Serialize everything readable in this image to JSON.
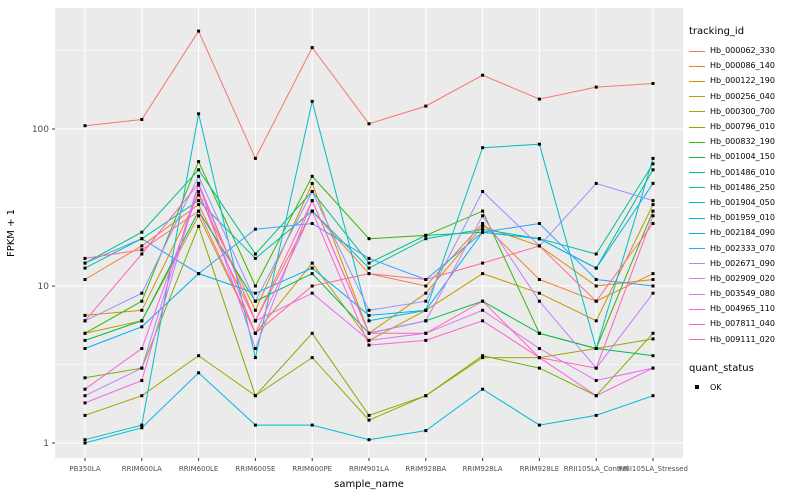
{
  "legend": {
    "tracking_id_title": "tracking_id",
    "quant_status_title": "quant_status",
    "quant_status_items": [
      {
        "label": "OK"
      }
    ]
  },
  "chart_data": {
    "type": "line",
    "title": "",
    "xlabel": "sample_name",
    "ylabel": "FPKM + 1",
    "y_scale": "log10",
    "ylim": [
      0.8,
      590
    ],
    "y_ticks": [
      1,
      10,
      100
    ],
    "panel_bg": "#EBEBEB",
    "grid_color": "#FFFFFF",
    "point_shape": "filled-square",
    "point_color": "#000000",
    "legend_position": "right",
    "categories": [
      "PB350LA",
      "RRIM600LA",
      "RRIM600LE",
      "RRIM600SE",
      "RRIM600PE",
      "RRIM901LA",
      "RRIM928BA",
      "RRIM928LA",
      "RRIM928LE",
      "RRII105LA_Control",
      "RRII105LA_Stressed"
    ],
    "series": [
      {
        "name": "Hb_000062_330",
        "color": "#F8766D",
        "values": [
          105,
          115,
          420,
          65,
          330,
          108,
          140,
          220,
          155,
          185,
          195
        ]
      },
      {
        "name": "Hb_000086_140",
        "color": "#EA8331",
        "values": [
          11,
          18,
          33,
          6,
          30,
          12,
          10,
          25,
          11,
          8,
          12
        ]
      },
      {
        "name": "Hb_000122_190",
        "color": "#D89000",
        "values": [
          6.5,
          7,
          38,
          7,
          45,
          5,
          9,
          24,
          18,
          10,
          11
        ]
      },
      {
        "name": "Hb_000256_040",
        "color": "#C09B00",
        "values": [
          5,
          6,
          28,
          5,
          14,
          4.5,
          7,
          12,
          9,
          6,
          33
        ]
      },
      {
        "name": "Hb_000300_700",
        "color": "#A3A500",
        "values": [
          1.5,
          2,
          3.6,
          2,
          3.5,
          1.4,
          2,
          3.5,
          3.5,
          4,
          4.6
        ]
      },
      {
        "name": "Hb_000796_010",
        "color": "#7CAE00",
        "values": [
          2.6,
          3,
          24,
          2,
          5,
          1.5,
          2,
          3.6,
          3,
          2,
          5
        ]
      },
      {
        "name": "Hb_000832_190",
        "color": "#39B600",
        "values": [
          5,
          8,
          62,
          10,
          50,
          20,
          21,
          30,
          5,
          4,
          30
        ]
      },
      {
        "name": "Hb_001004_150",
        "color": "#00BB4E",
        "values": [
          4.5,
          6,
          30,
          8,
          12,
          5,
          6,
          8,
          5,
          4,
          3.6
        ]
      },
      {
        "name": "Hb_001486_010",
        "color": "#00BF7D",
        "values": [
          14,
          22,
          55,
          16,
          40,
          14,
          21,
          22,
          20,
          13,
          55
        ]
      },
      {
        "name": "Hb_001486_250",
        "color": "#00C1A3",
        "values": [
          13,
          20,
          35,
          15,
          30,
          13,
          20,
          23,
          20,
          16,
          60
        ]
      },
      {
        "name": "Hb_001904_050",
        "color": "#00BFC4",
        "values": [
          1.05,
          1.3,
          125,
          3.5,
          150,
          6,
          7,
          76,
          80,
          4,
          65
        ]
      },
      {
        "name": "Hb_001959_010",
        "color": "#00BAE0",
        "values": [
          1.0,
          1.25,
          2.8,
          1.3,
          1.3,
          1.05,
          1.2,
          2.2,
          1.3,
          1.5,
          2.0
        ]
      },
      {
        "name": "Hb_002184_090",
        "color": "#00B0F6",
        "values": [
          4,
          5.5,
          12,
          9,
          13,
          6.5,
          7,
          22,
          20,
          13,
          45
        ]
      },
      {
        "name": "Hb_002333_070",
        "color": "#35A2FF",
        "values": [
          14,
          20,
          12,
          23,
          25,
          15,
          11,
          22,
          25,
          11,
          10
        ]
      },
      {
        "name": "Hb_002671_090",
        "color": "#9590FF",
        "values": [
          6,
          9,
          50,
          8,
          40,
          7,
          8,
          40,
          18,
          45,
          35
        ]
      },
      {
        "name": "Hb_002909_020",
        "color": "#C77CFF",
        "values": [
          2,
          3,
          45,
          4,
          35,
          5,
          6,
          28,
          8,
          3,
          9
        ]
      },
      {
        "name": "Hb_003549_080",
        "color": "#E76BF3",
        "values": [
          1.8,
          2.5,
          44,
          6,
          9,
          4.5,
          5,
          7,
          4,
          2.5,
          3
        ]
      },
      {
        "name": "Hb_004965_110",
        "color": "#FA62DB",
        "values": [
          2.2,
          4,
          40,
          5,
          30,
          4.2,
          4.5,
          6,
          3.5,
          2,
          3
        ]
      },
      {
        "name": "Hb_007811_040",
        "color": "#FF62BC",
        "values": [
          6,
          16,
          45,
          6,
          35,
          5,
          5,
          8,
          3.5,
          3,
          28
        ]
      },
      {
        "name": "Hb_009111_020",
        "color": "#FF6A98",
        "values": [
          15,
          17,
          30,
          5,
          10,
          12,
          11,
          14,
          18,
          8,
          25
        ]
      }
    ]
  }
}
